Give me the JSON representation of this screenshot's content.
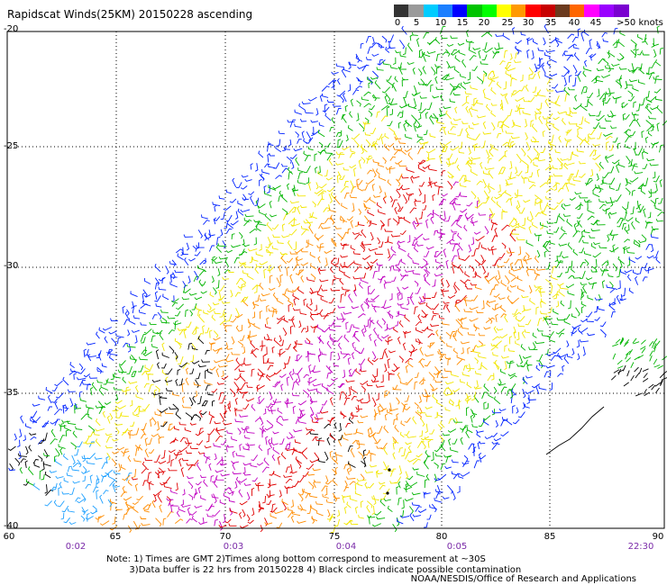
{
  "title": "Rapidscat Winds(25KM) 20150228 ascending",
  "legend": {
    "unit_label": ">50 knots",
    "ticks": [
      "0",
      "5",
      "10",
      "15",
      "20",
      "25",
      "30",
      "35",
      "40",
      "45"
    ],
    "colors": [
      "#333333",
      "#9a9a9a",
      "#00ccff",
      "#1b7fff",
      "#0000ff",
      "#00c400",
      "#00ff00",
      "#ffff00",
      "#ff9900",
      "#ff0000",
      "#c80000",
      "#6b3a1e",
      "#ff6600",
      "#ff00ff",
      "#9a00ff",
      "#7a00d0"
    ]
  },
  "axes": {
    "lat_labels": [
      "-20",
      "-25",
      "-30",
      "-35",
      "-40"
    ],
    "lon_labels": [
      "60",
      "65",
      "70",
      "75",
      "80",
      "85",
      "90"
    ]
  },
  "times": [
    "0:02",
    "0:03",
    "0:04",
    "0:05",
    "22:30"
  ],
  "notes": "Note: 1) Times are GMT 2)Times along bottom correspond to measurement at ~30S\n        3)Data buffer is 22 hrs from 20150228 4) Black circles indicate possible contamination",
  "credit": "NOAA/NESDIS/Office of Research and Applications",
  "wind_speed_colors": {
    "black": "#000000",
    "light_blue": "#1ea0ff",
    "blue": "#0022ff",
    "green": "#00b400",
    "yellow": "#f2e600",
    "orange": "#ff8c00",
    "red": "#e00000",
    "magenta": "#c000c0"
  }
}
